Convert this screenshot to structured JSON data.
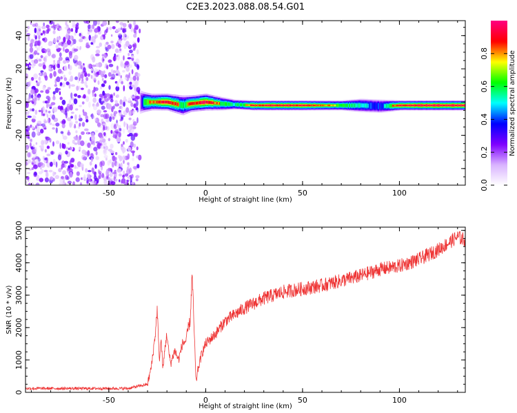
{
  "figure_title": "C2E3.2023.088.08.54.G01",
  "chart_data": [
    {
      "type": "heatmap",
      "title": "",
      "xlabel": "Height of straight line (km)",
      "ylabel": "Frequency (Hz)",
      "xlim": [
        -93,
        134
      ],
      "ylim": [
        -50,
        49
      ],
      "xticks": [
        -50,
        0,
        50,
        100
      ],
      "xtick_labels": [
        "-50",
        "0",
        "50",
        "100"
      ],
      "yticks": [
        -40,
        -20,
        0,
        20,
        40
      ],
      "ytick_labels": [
        "-40",
        "-20",
        "0",
        "20",
        "40"
      ],
      "grid": false,
      "colorbar": {
        "label": "Normalized spectral amplitude",
        "range": [
          0,
          1
        ],
        "ticks": [
          0.0,
          0.2,
          0.4,
          0.6,
          0.8
        ],
        "tick_labels": [
          "0.0",
          "0.2",
          "0.4",
          "0.6",
          "0.8"
        ],
        "stops": [
          "#ffffff",
          "#d9b3ff",
          "#7f00ff",
          "#0000ff",
          "#00ffff",
          "#00ff00",
          "#ffff00",
          "#ff0000",
          "#ff0080"
        ]
      },
      "noise_region": {
        "x_range": [
          -93,
          -34
        ],
        "y_range": [
          -50,
          49
        ],
        "amplitude_range": [
          0.05,
          0.3
        ]
      },
      "signal_band": [
        {
          "x": -34,
          "freq": 0,
          "width": 7,
          "amplitude": 0.3
        },
        {
          "x": -32,
          "freq": 0,
          "width": 6,
          "amplitude": 0.7
        },
        {
          "x": -28,
          "freq": 0,
          "width": 5,
          "amplitude": 0.75
        },
        {
          "x": -20,
          "freq": 0,
          "width": 5,
          "amplitude": 0.95
        },
        {
          "x": -12,
          "freq": -2,
          "width": 6,
          "amplitude": 0.65
        },
        {
          "x": -8,
          "freq": -1,
          "width": 5,
          "amplitude": 0.8
        },
        {
          "x": 0,
          "freq": 0,
          "width": 5,
          "amplitude": 0.95
        },
        {
          "x": 8,
          "freq": -1,
          "width": 4,
          "amplitude": 0.7
        },
        {
          "x": 15,
          "freq": -1.5,
          "width": 3,
          "amplitude": 0.6
        },
        {
          "x": 25,
          "freq": -2,
          "width": 3,
          "amplitude": 0.85
        },
        {
          "x": 40,
          "freq": -2,
          "width": 3,
          "amplitude": 0.9
        },
        {
          "x": 55,
          "freq": -2,
          "width": 3,
          "amplitude": 0.85
        },
        {
          "x": 70,
          "freq": -2,
          "width": 3,
          "amplitude": 0.7
        },
        {
          "x": 80,
          "freq": -2,
          "width": 4,
          "amplitude": 0.6
        },
        {
          "x": 90,
          "freq": -2.5,
          "width": 4,
          "amplitude": 0.5
        },
        {
          "x": 100,
          "freq": -2,
          "width": 3,
          "amplitude": 0.9
        },
        {
          "x": 115,
          "freq": -2,
          "width": 3,
          "amplitude": 0.95
        },
        {
          "x": 134,
          "freq": -2,
          "width": 3,
          "amplitude": 0.95
        }
      ]
    },
    {
      "type": "line",
      "title": "",
      "xlabel": "Height of straight line (km)",
      "ylabel": "SNR (10 * v/v)",
      "xlim": [
        -93,
        134
      ],
      "ylim": [
        0,
        5100
      ],
      "xticks": [
        -50,
        0,
        50,
        100
      ],
      "xtick_labels": [
        "-50",
        "0",
        "50",
        "100"
      ],
      "yticks": [
        0,
        1000,
        2000,
        3000,
        4000,
        5000
      ],
      "ytick_labels": [
        "0",
        "1000",
        "2000",
        "3000",
        "4000",
        "5000"
      ],
      "grid": false,
      "series": [
        {
          "color": "#ee3333",
          "x": [
            -93,
            -80,
            -60,
            -40,
            -30,
            -28,
            -26,
            -25,
            -24,
            -23,
            -22,
            -21,
            -20,
            -19,
            -18,
            -16,
            -14,
            -12,
            -10,
            -9,
            -8,
            -7,
            -6,
            -5,
            -4,
            -2,
            0,
            5,
            10,
            20,
            30,
            40,
            50,
            60,
            70,
            80,
            90,
            100,
            110,
            120,
            125,
            130,
            134
          ],
          "y": [
            120,
            120,
            120,
            120,
            250,
            800,
            1800,
            2600,
            1000,
            1600,
            700,
            1400,
            1800,
            1200,
            900,
            1300,
            1000,
            1500,
            1600,
            2000,
            2200,
            3650,
            2000,
            300,
            700,
            1200,
            1500,
            1800,
            2200,
            2600,
            2900,
            3100,
            3200,
            3300,
            3450,
            3600,
            3800,
            3900,
            4100,
            4400,
            4600,
            4800,
            4700
          ],
          "noise_amplitude": 220
        }
      ]
    }
  ]
}
